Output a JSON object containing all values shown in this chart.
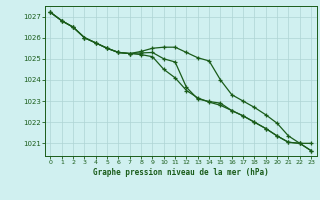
{
  "title": "Graphe pression niveau de la mer (hPa)",
  "background_color": "#d0f0f0",
  "grid_color": "#aed4d4",
  "line_color": "#1a5c1a",
  "xlim": [
    -0.5,
    23.5
  ],
  "ylim": [
    1020.4,
    1027.5
  ],
  "yticks": [
    1021,
    1022,
    1023,
    1024,
    1025,
    1026,
    1027
  ],
  "xticks": [
    0,
    1,
    2,
    3,
    4,
    5,
    6,
    7,
    8,
    9,
    10,
    11,
    12,
    13,
    14,
    15,
    16,
    17,
    18,
    19,
    20,
    21,
    22,
    23
  ],
  "series1_x": [
    0,
    1,
    2,
    3,
    4,
    5,
    6,
    7,
    8,
    9,
    10,
    11,
    12,
    13,
    14,
    15,
    16,
    17,
    18,
    19,
    20,
    21,
    22,
    23
  ],
  "series1_y": [
    1027.2,
    1026.8,
    1026.5,
    1026.0,
    1025.75,
    1025.5,
    1025.3,
    1025.25,
    1025.35,
    1025.5,
    1025.55,
    1025.55,
    1025.3,
    1025.05,
    1024.9,
    1024.0,
    1023.3,
    1023.0,
    1022.7,
    1022.35,
    1021.95,
    1021.35,
    1021.0,
    1021.0
  ],
  "series2_x": [
    0,
    1,
    2,
    3,
    4,
    5,
    6,
    7,
    8,
    9,
    10,
    11,
    12,
    13,
    14,
    15,
    16,
    17,
    18,
    19,
    20,
    21,
    22,
    23
  ],
  "series2_y": [
    1027.2,
    1026.8,
    1026.5,
    1026.0,
    1025.75,
    1025.5,
    1025.3,
    1025.25,
    1025.2,
    1025.1,
    1024.5,
    1024.1,
    1023.5,
    1023.15,
    1022.95,
    1022.8,
    1022.55,
    1022.3,
    1022.0,
    1021.7,
    1021.35,
    1021.05,
    1021.0,
    1020.65
  ],
  "series3_x": [
    0,
    1,
    2,
    3,
    4,
    5,
    6,
    7,
    8,
    9,
    10,
    11,
    12,
    13,
    14,
    15,
    16,
    17,
    18,
    19,
    20,
    21,
    22,
    23
  ],
  "series3_y": [
    1027.2,
    1026.8,
    1026.5,
    1026.0,
    1025.75,
    1025.5,
    1025.3,
    1025.25,
    1025.28,
    1025.3,
    1025.0,
    1024.85,
    1023.65,
    1023.1,
    1022.98,
    1022.9,
    1022.55,
    1022.3,
    1022.0,
    1021.7,
    1021.35,
    1021.05,
    1021.0,
    1020.65
  ]
}
